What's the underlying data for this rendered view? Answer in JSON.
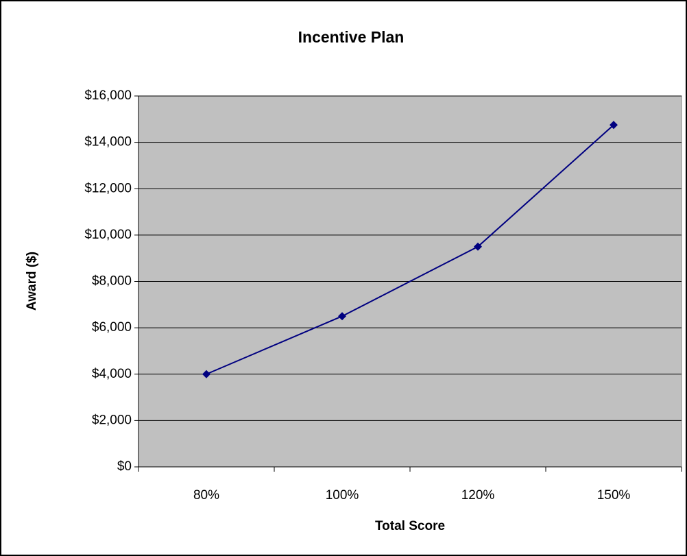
{
  "chart_data": {
    "type": "line",
    "title": "Incentive Plan",
    "x_label": "Total Score",
    "y_label": "Award ($)",
    "categories": [
      "80%",
      "100%",
      "120%",
      "150%"
    ],
    "values": [
      4000,
      6500,
      9500,
      14750
    ],
    "color": "#000080",
    "ylim": [
      0,
      16000
    ],
    "yticks": [
      {
        "value": 0,
        "label": "$0"
      },
      {
        "value": 2000,
        "label": "$2,000"
      },
      {
        "value": 4000,
        "label": "$4,000"
      },
      {
        "value": 6000,
        "label": "$6,000"
      },
      {
        "value": 8000,
        "label": "$8,000"
      },
      {
        "value": 10000,
        "label": "$10,000"
      },
      {
        "value": 12000,
        "label": "$12,000"
      },
      {
        "value": 14000,
        "label": "$14,000"
      },
      {
        "value": 16000,
        "label": "$16,000"
      }
    ],
    "grid": true
  }
}
